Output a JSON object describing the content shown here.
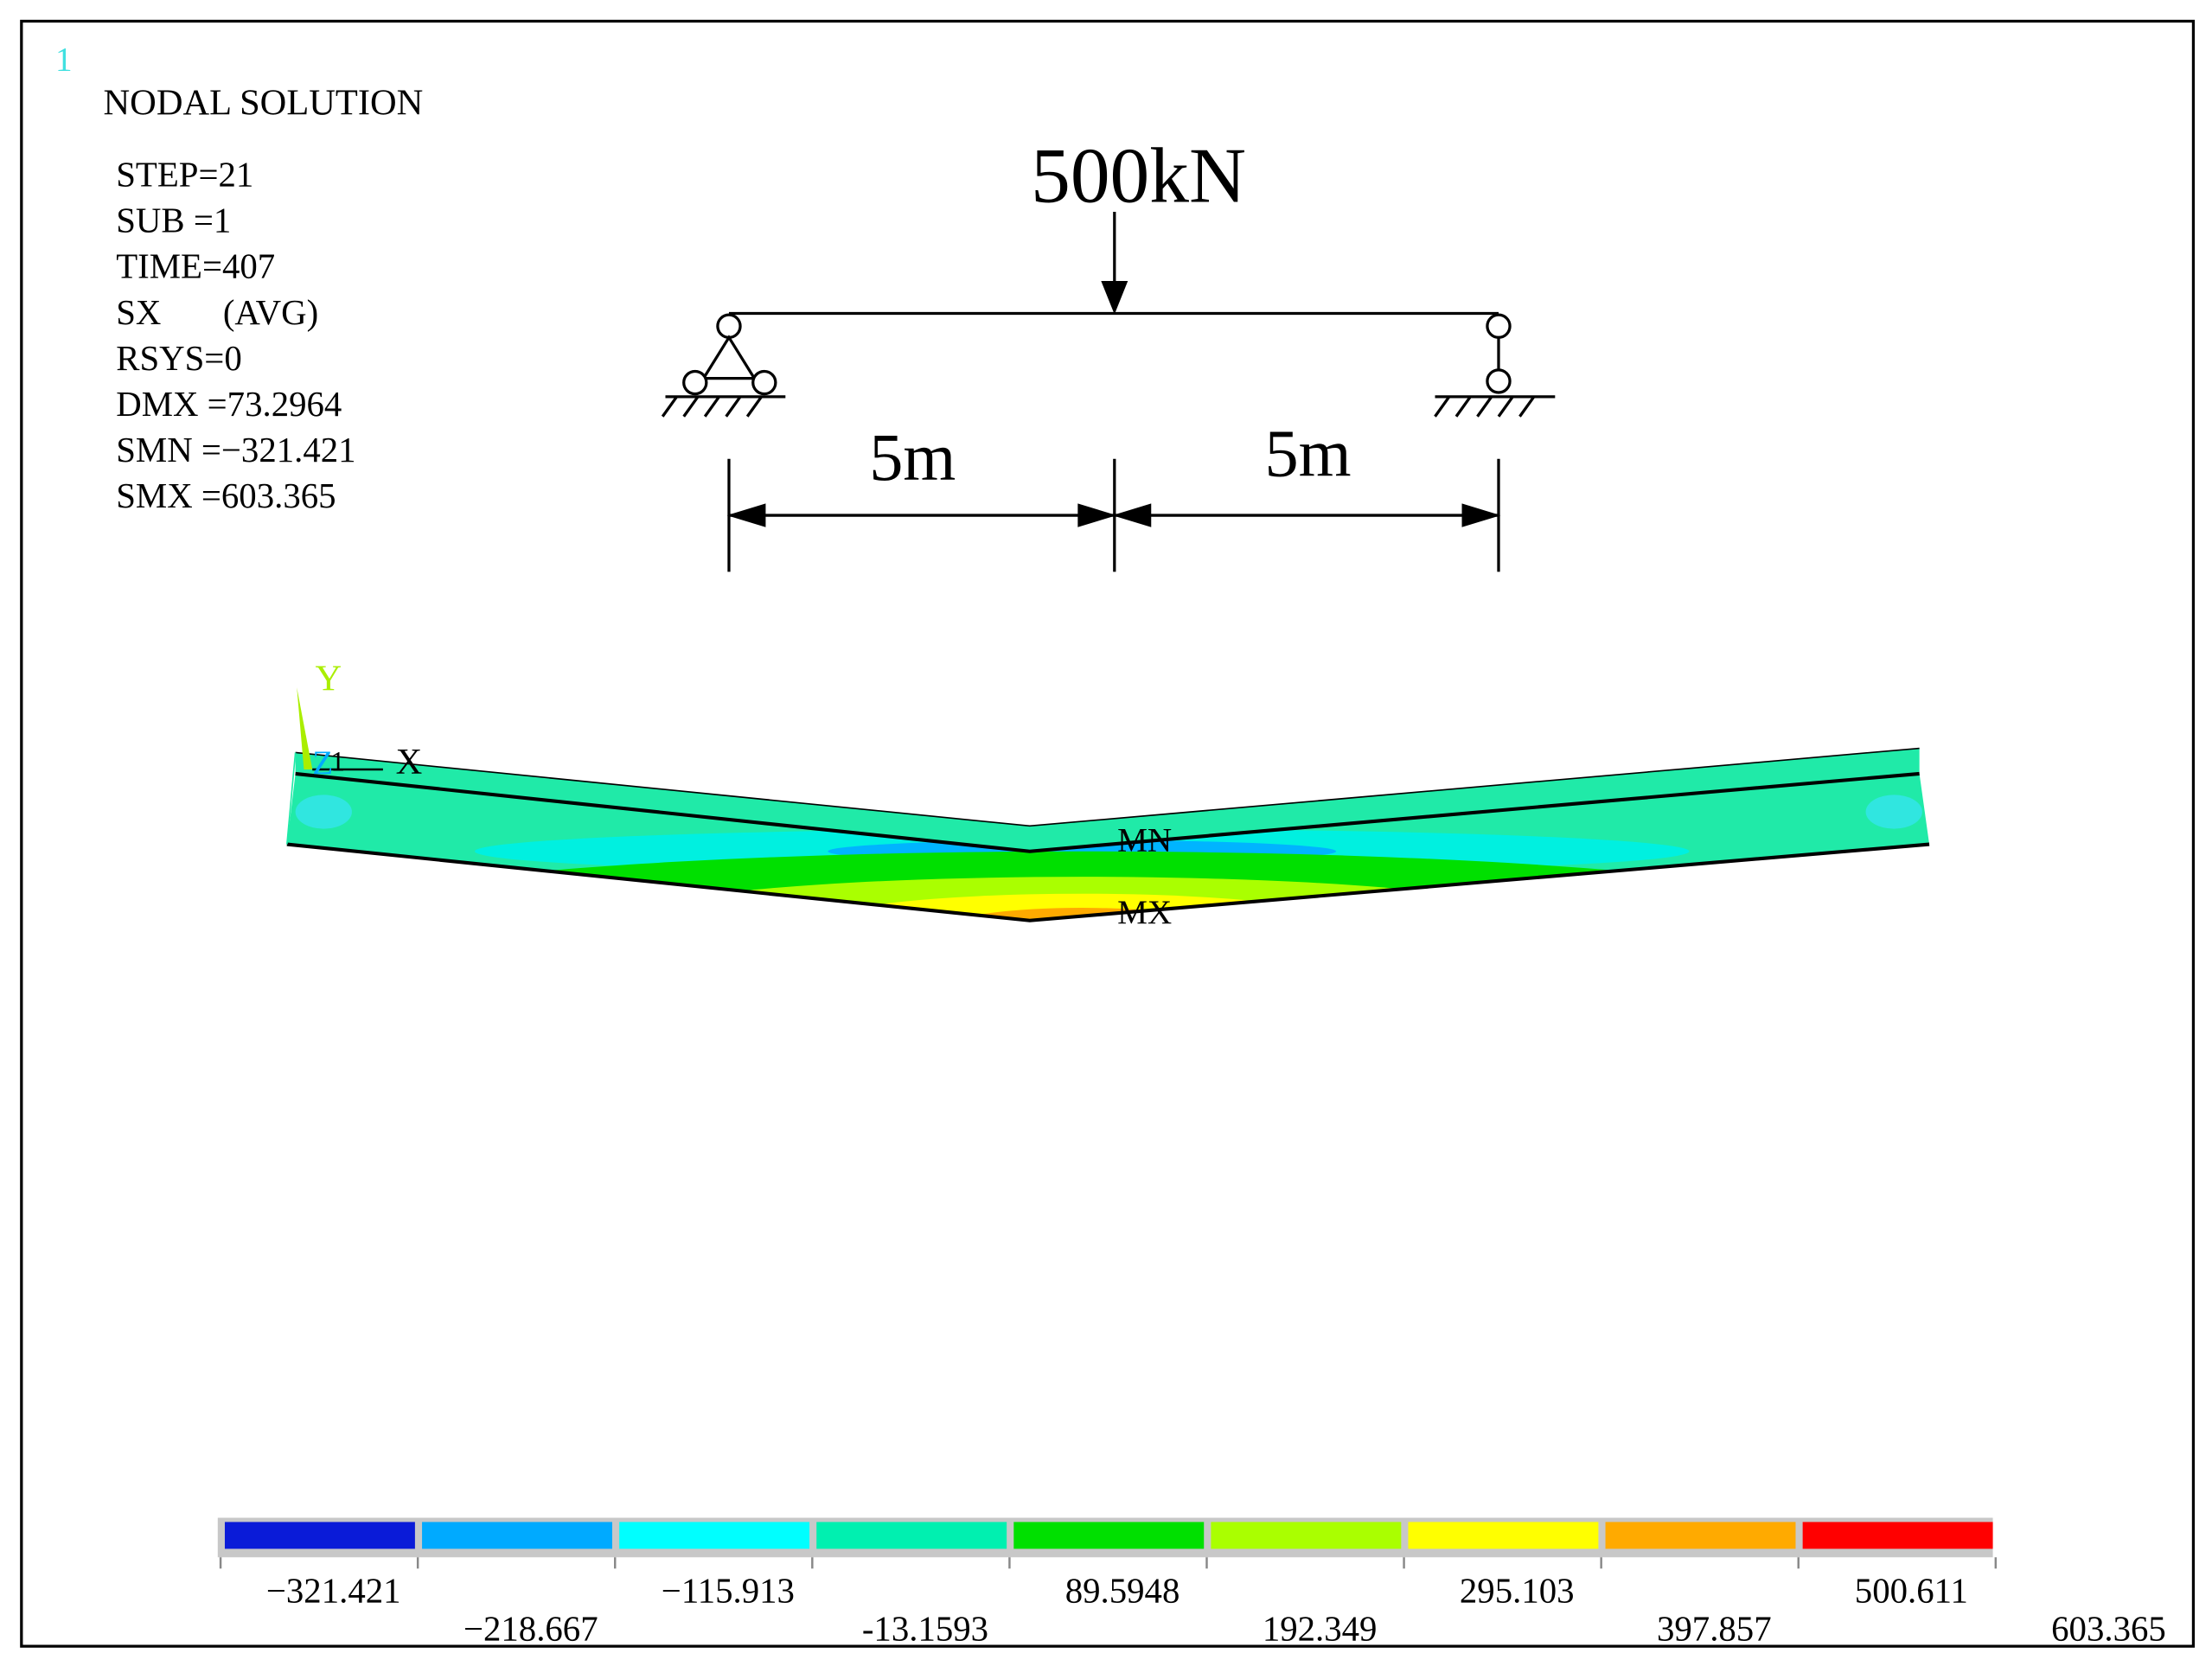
{
  "window_number": "1",
  "header": {
    "title": "NODAL SOLUTION",
    "info": [
      "STEP=21",
      "SUB =1",
      "TIME=407",
      "SX       (AVG)",
      "RSYS=0",
      "DMX =73.2964",
      "SMN =−321.421",
      "SMX =603.365"
    ]
  },
  "load_diagram": {
    "load": "500kN",
    "spans": [
      "5m",
      "5m"
    ]
  },
  "triad": {
    "y": "Y",
    "z": "Z",
    "node": "1",
    "x": "X"
  },
  "markers": {
    "min": "MN",
    "max": "MX"
  },
  "legend": {
    "labels": [
      "−321.421",
      "−218.667",
      "−115.913",
      "-13.1593",
      "89.5948",
      "192.349",
      "295.103",
      "397.857",
      "500.611",
      "603.365"
    ],
    "colors": [
      "#0a1bd8",
      "#00aaff",
      "#00ffff",
      "#00f0b0",
      "#00e000",
      "#aaff00",
      "#ffff00",
      "#ffaa00",
      "#ff0000"
    ]
  }
}
